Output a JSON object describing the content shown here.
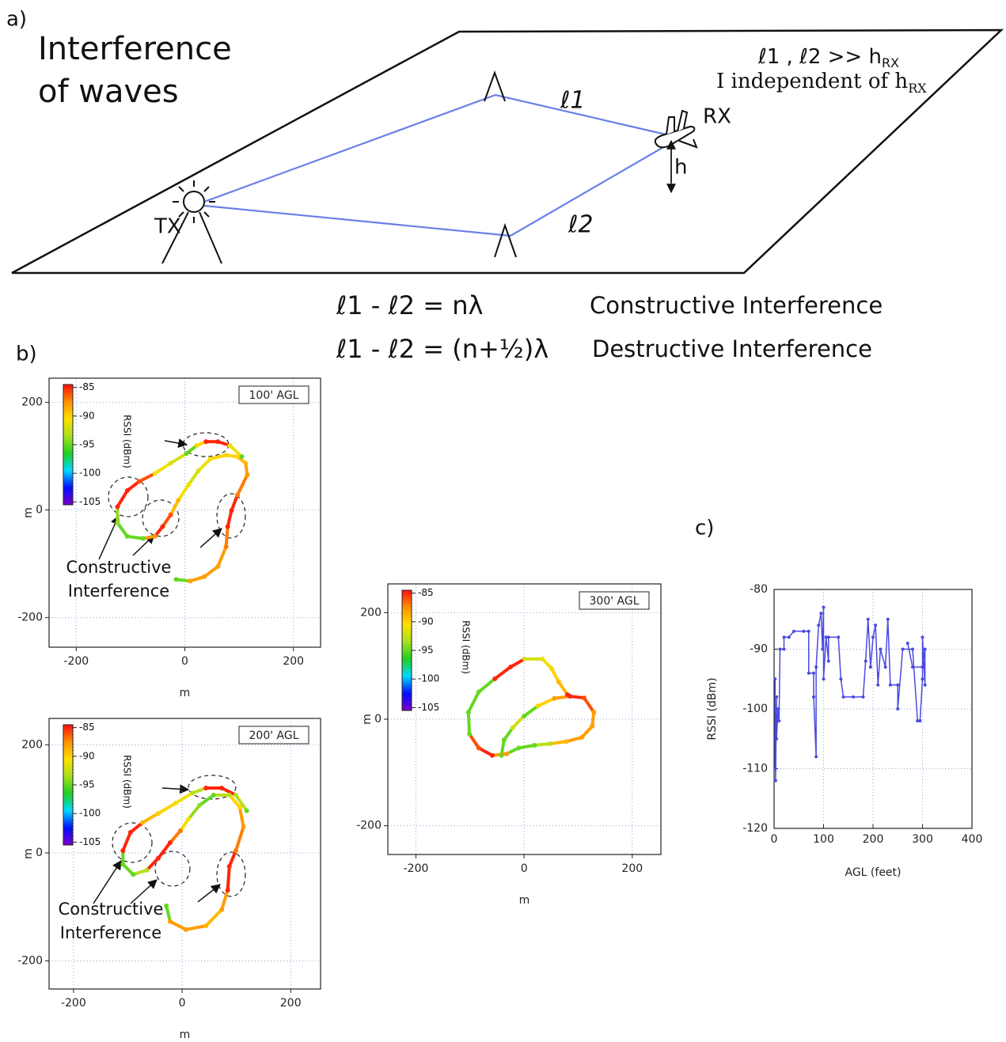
{
  "panel_labels": {
    "a": "a)",
    "b": "b)",
    "c": "c)"
  },
  "diagram": {
    "title": [
      "Interference",
      "of waves"
    ],
    "tx": "TX",
    "rx": "RX",
    "h": "h",
    "path1": "ℓ1",
    "path2": "ℓ2",
    "condition": {
      "text": "ℓ1 , ℓ2 >> h",
      "sub": "RX"
    },
    "note": {
      "text": "I independent of h",
      "sub": "RX"
    },
    "equations": [
      {
        "formula": "ℓ1 - ℓ2 = nλ",
        "label": "Constructive Interference"
      },
      {
        "formula": "ℓ1 - ℓ2 = (n+½)λ",
        "label": "Destructive Interference"
      }
    ]
  },
  "chart_data": [
    {
      "type": "scatter",
      "title": "100' AGL",
      "xlabel": "m",
      "ylabel": "m",
      "xlim": [
        -250,
        250
      ],
      "ylim": [
        -255,
        245
      ],
      "xticks": [
        -200,
        0,
        200
      ],
      "yticks": [
        -200,
        0,
        200
      ],
      "grid": true,
      "annotation": [
        "Constructive",
        "Interference"
      ],
      "colorbar": {
        "label": "RSSI (dBm)",
        "lim": [
          -105.5,
          -84.5
        ],
        "ticks": [
          -105,
          -100,
          -95,
          -90,
          -85
        ],
        "colors": [
          "#7a00c8",
          "#0010ff",
          "#00d8ff",
          "#20d020",
          "#a8e020",
          "#ffe000",
          "#ff9000",
          "#ff1010"
        ]
      },
      "x": [
        -16,
        10,
        36,
        61,
        76,
        79,
        86,
        97,
        115,
        112,
        97,
        76,
        47,
        25,
        7,
        -12,
        -26,
        -41,
        -55,
        -77,
        -106,
        -124,
        -124,
        -106,
        -84,
        -55,
        -26,
        3,
        22,
        39,
        61,
        83,
        105
      ],
      "y": [
        -129,
        -132,
        -124,
        -105,
        -68,
        -31,
        -1,
        28,
        65,
        87,
        99,
        102,
        95,
        73,
        47,
        18,
        -9,
        -31,
        -49,
        -53,
        -49,
        -24,
        6,
        36,
        53,
        68,
        87,
        105,
        120,
        127,
        127,
        120,
        99
      ],
      "values": [
        -95,
        -88,
        -88,
        -88,
        -87,
        -85,
        -85,
        -87,
        -88,
        -89,
        -90,
        -90,
        -91,
        -92,
        -91,
        -89,
        -86,
        -85,
        -88,
        -95,
        -95,
        -94,
        -85,
        -85,
        -86,
        -91,
        -92,
        -95,
        -90,
        -85,
        -85,
        -91,
        -95
      ]
    },
    {
      "type": "scatter",
      "title": "200' AGL",
      "xlabel": "m",
      "ylabel": "m",
      "xlim": [
        -245,
        255
      ],
      "ylim": [
        -252,
        249
      ],
      "xticks": [
        -200,
        0,
        200
      ],
      "yticks": [
        -200,
        0,
        200
      ],
      "grid": true,
      "annotation": [
        "Constructive",
        "Interference"
      ],
      "colorbar": {
        "label": "RSSI (dBm)",
        "lim": [
          -105.5,
          -84.5
        ],
        "ticks": [
          -105,
          -100,
          -95,
          -90,
          -85
        ],
        "colors": [
          "#7a00c8",
          "#0010ff",
          "#00d8ff",
          "#20d020",
          "#a8e020",
          "#ffe000",
          "#ff9000",
          "#ff1010"
        ]
      },
      "x": [
        -29,
        -22,
        7,
        44,
        73,
        84,
        87,
        99,
        113,
        106,
        87,
        58,
        32,
        12,
        -3,
        -22,
        -44,
        -65,
        -90,
        -109,
        -109,
        -95,
        -73,
        -44,
        -12,
        19,
        44,
        73,
        99,
        119
      ],
      "y": [
        -98,
        -127,
        -142,
        -135,
        -105,
        -69,
        -25,
        4,
        48,
        85,
        107,
        107,
        88,
        63,
        41,
        19,
        -10,
        -32,
        -40,
        -21,
        4,
        38,
        56,
        73,
        92,
        111,
        120,
        120,
        107,
        78
      ],
      "values": [
        -95,
        -88,
        -88,
        -89,
        -88,
        -85,
        -85,
        -87,
        -88,
        -90,
        -93,
        -95,
        -94,
        -91,
        -87,
        -85,
        -85,
        -93,
        -95,
        -95,
        -85,
        -85,
        -89,
        -90,
        -91,
        -93,
        -85,
        -85,
        -93,
        -95
      ]
    },
    {
      "type": "scatter",
      "title": "300' AGL",
      "xlabel": "m",
      "ylabel": "m",
      "xlim": [
        -252,
        253
      ],
      "ylim": [
        -254,
        254
      ],
      "xticks": [
        -200,
        0,
        200
      ],
      "yticks": [
        -200,
        0,
        200
      ],
      "grid": true,
      "colorbar": {
        "label": "RSSI (dBm)",
        "lim": [
          -105.5,
          -84.5
        ],
        "ticks": [
          -105,
          -100,
          -95,
          -90,
          -85
        ],
        "colors": [
          "#7a00c8",
          "#0010ff",
          "#00d8ff",
          "#20d020",
          "#a8e020",
          "#ffe000",
          "#ff9000",
          "#ff1010"
        ]
      },
      "x": [
        -42,
        -37,
        -21,
        0,
        26,
        56,
        85,
        111,
        129,
        126,
        107,
        78,
        48,
        19,
        -10,
        -32,
        -59,
        -84,
        -101,
        -103,
        -84,
        -54,
        -25,
        1,
        34,
        51,
        64,
        80
      ],
      "y": [
        -68,
        -39,
        -16,
        6,
        25,
        39,
        43,
        40,
        13,
        -13,
        -34,
        -42,
        -46,
        -49,
        -54,
        -65,
        -68,
        -54,
        -28,
        13,
        51,
        76,
        98,
        113,
        113,
        95,
        70,
        46
      ],
      "values": [
        -95,
        -95,
        -92,
        -95,
        -90,
        -88,
        -85,
        -86,
        -88,
        -88,
        -88,
        -89,
        -93,
        -95,
        -95,
        -88,
        -85,
        -86,
        -95,
        -95,
        -95,
        -85,
        -85,
        -92,
        -91,
        -90,
        -89,
        -85
      ]
    },
    {
      "type": "line",
      "xlabel": "AGL (feet)",
      "ylabel": "RSSI (dBm)",
      "xlim": [
        0,
        400
      ],
      "ylim": [
        -120,
        -80
      ],
      "xticks": [
        0,
        100,
        200,
        300,
        400
      ],
      "yticks": [
        -120,
        -110,
        -100,
        -90,
        -80
      ],
      "grid": true,
      "color": "#4a4ae0",
      "x": [
        2,
        2,
        3,
        3,
        5,
        5,
        8,
        10,
        12,
        20,
        20,
        30,
        40,
        60,
        70,
        70,
        80,
        80,
        85,
        85,
        90,
        95,
        98,
        100,
        100,
        105,
        110,
        110,
        130,
        135,
        140,
        160,
        180,
        185,
        190,
        195,
        200,
        205,
        210,
        215,
        225,
        230,
        235,
        250,
        250,
        260,
        280,
        290,
        295,
        300,
        300,
        305,
        305,
        300,
        280,
        270
      ],
      "values": [
        -95,
        -110,
        -100,
        -112,
        -98,
        -105,
        -100,
        -102,
        -90,
        -90,
        -88,
        -88,
        -87,
        -87,
        -87,
        -94,
        -94,
        -98,
        -108,
        -93,
        -86,
        -84,
        -90,
        -83,
        -95,
        -88,
        -92,
        -88,
        -88,
        -95,
        -98,
        -98,
        -98,
        -92,
        -85,
        -93,
        -88,
        -86,
        -96,
        -90,
        -93,
        -85,
        -96,
        -96,
        -100,
        -90,
        -90,
        -102,
        -102,
        -95,
        -88,
        -96,
        -90,
        -93,
        -93,
        -89
      ]
    }
  ]
}
